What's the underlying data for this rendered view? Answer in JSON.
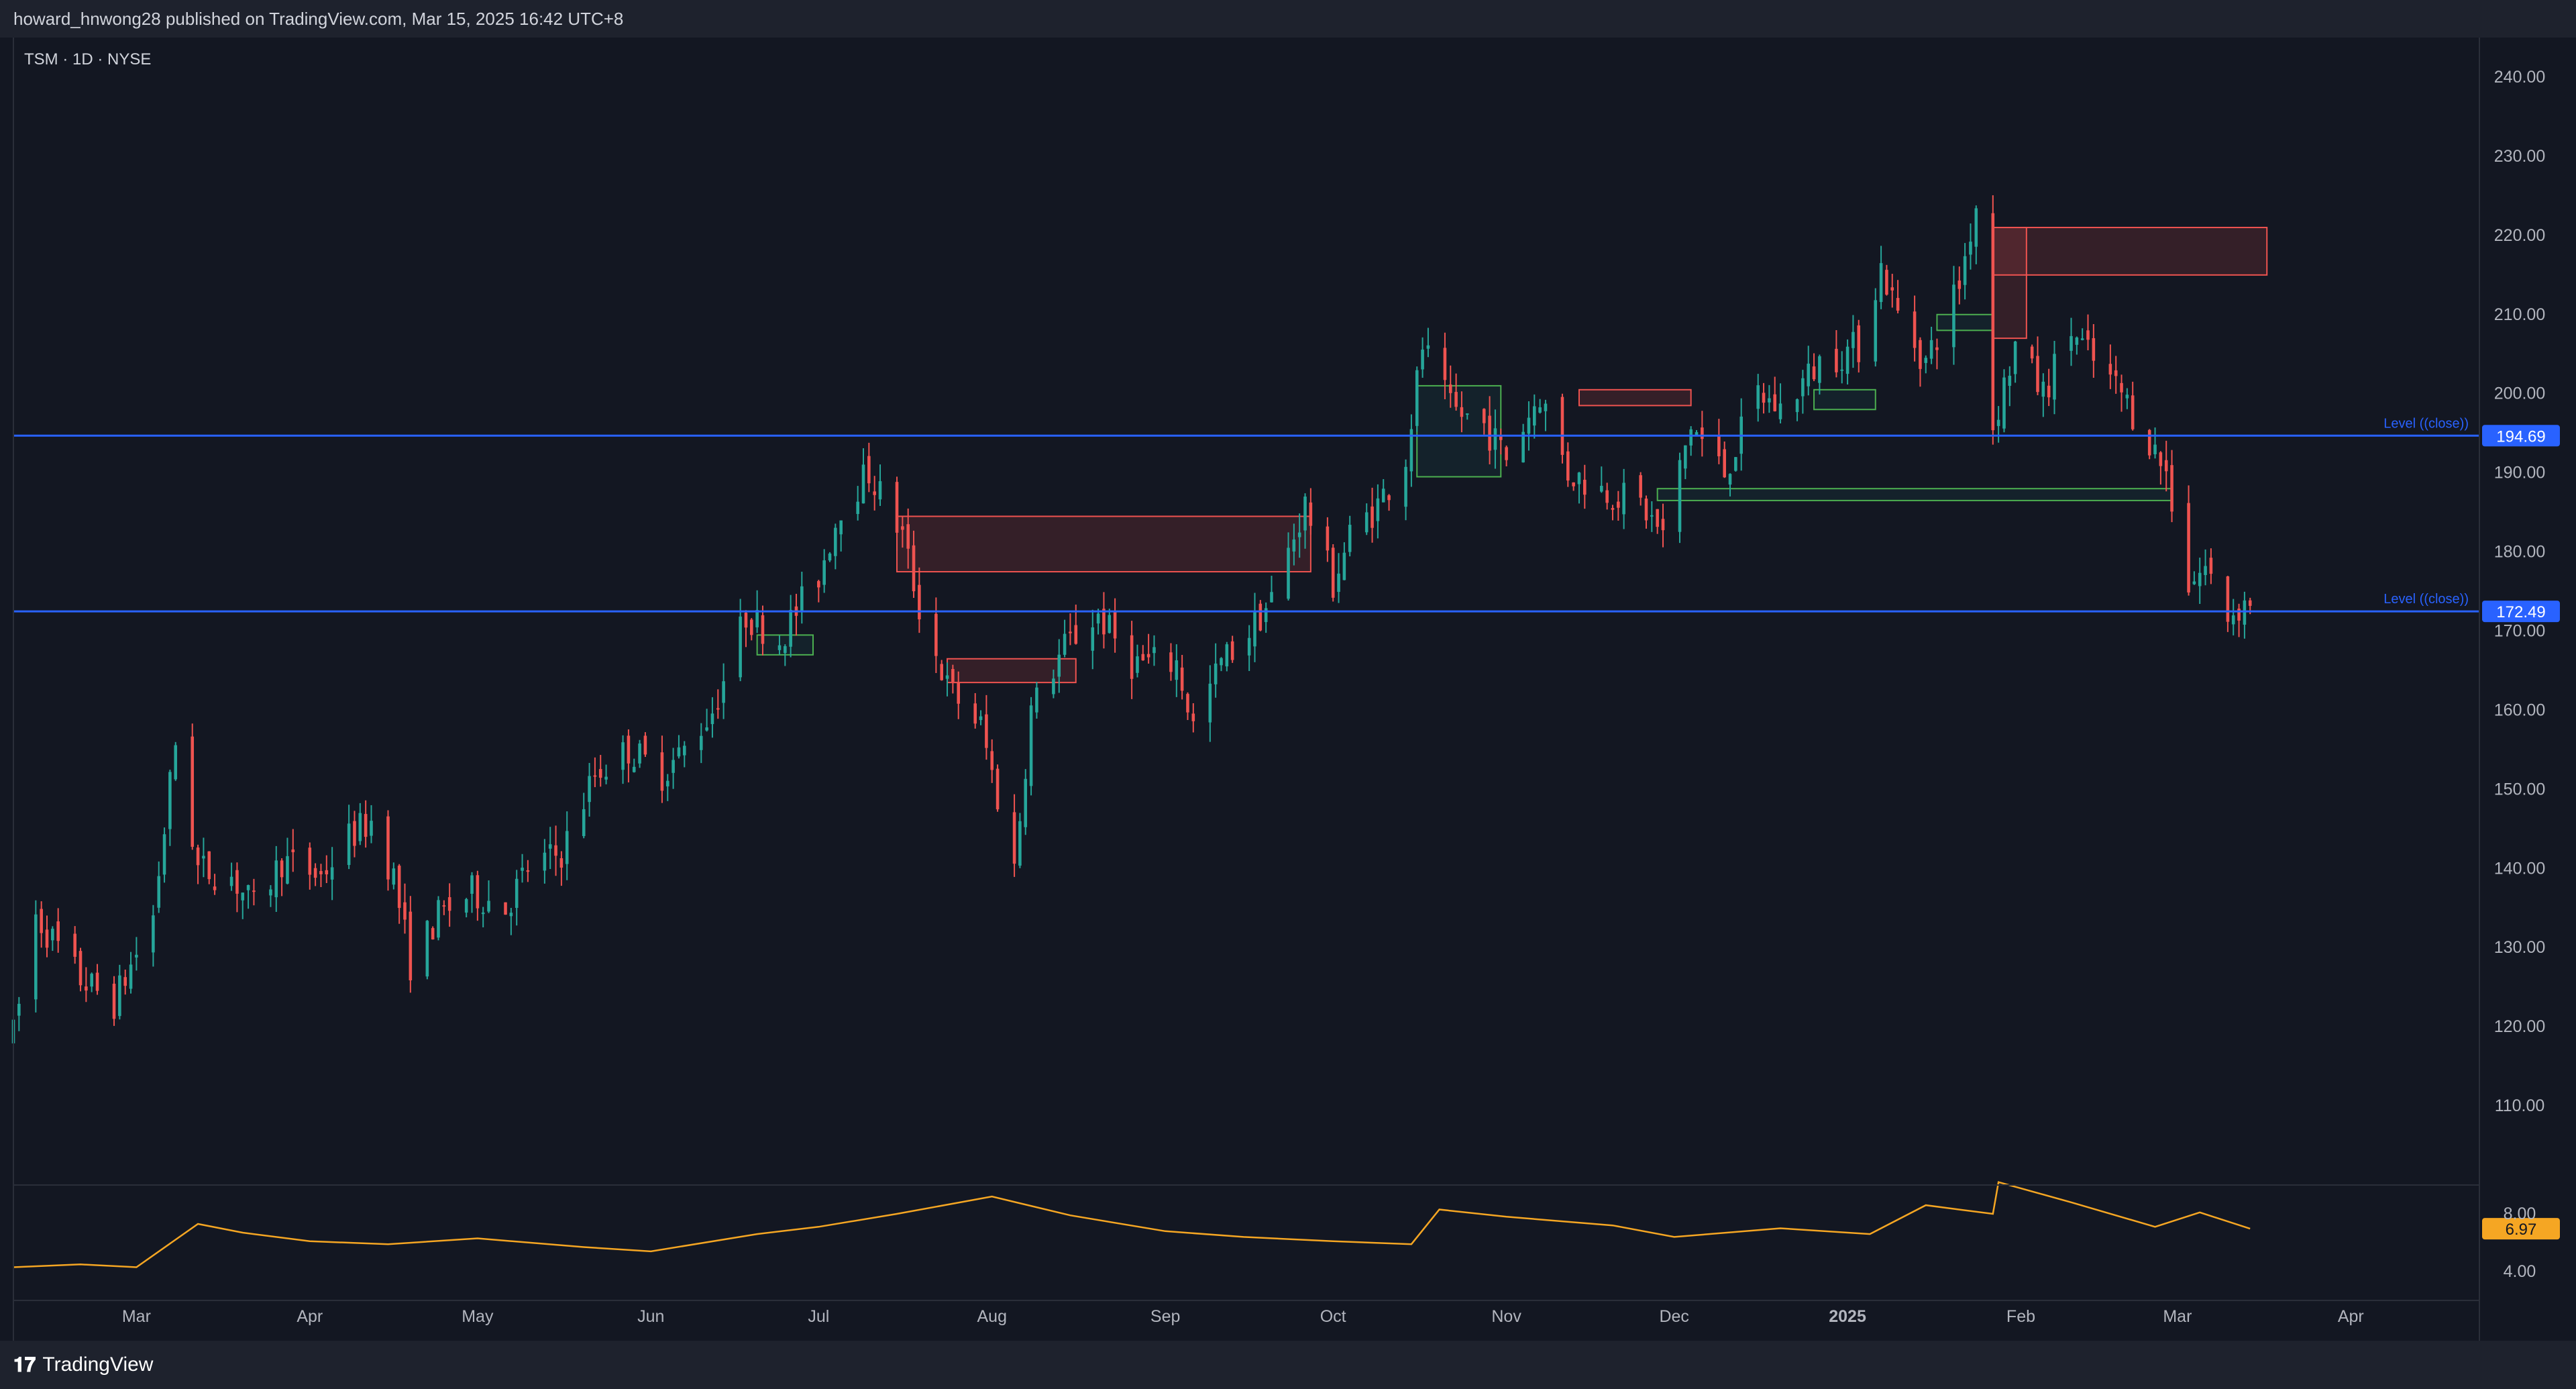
{
  "header": {
    "published_line": "howard_hnwong28 published on TradingView.com, Mar 15, 2025 16:42 UTC+8"
  },
  "footer": {
    "brand": "TradingView",
    "logo_icon": "tradingview-logo-icon"
  },
  "colors": {
    "background": "#131722",
    "panel": "#1e222d",
    "up": "#26a69a",
    "down": "#ef5350",
    "level_line": "#2962ff",
    "volatility": "#f5a623",
    "grid_text": "#b2b5be"
  },
  "chart_data": {
    "type": "candlestick",
    "symbol_label": "TSM · 1D · NYSE",
    "ylim": [
      100,
      245
    ],
    "y_ticks": [
      110,
      120,
      130,
      140,
      150,
      160,
      170,
      180,
      190,
      200,
      210,
      220,
      230,
      240
    ],
    "y_tick_labels": [
      "110.00",
      "120.00",
      "130.00",
      "140.00",
      "150.00",
      "160.00",
      "170.00",
      "180.00",
      "190.00",
      "200.00",
      "210.00",
      "220.00",
      "230.00",
      "240.00"
    ],
    "x_labels": [
      {
        "date": "2024-03-01",
        "label": "Mar"
      },
      {
        "date": "2024-04-01",
        "label": "Apr"
      },
      {
        "date": "2024-05-01",
        "label": "May"
      },
      {
        "date": "2024-06-01",
        "label": "Jun"
      },
      {
        "date": "2024-07-01",
        "label": "Jul"
      },
      {
        "date": "2024-08-01",
        "label": "Aug"
      },
      {
        "date": "2024-09-01",
        "label": "Sep"
      },
      {
        "date": "2024-10-01",
        "label": "Oct"
      },
      {
        "date": "2024-11-01",
        "label": "Nov"
      },
      {
        "date": "2024-12-01",
        "label": "Dec"
      },
      {
        "date": "2025-01-01",
        "label": "2025"
      },
      {
        "date": "2025-02-01",
        "label": "Feb"
      },
      {
        "date": "2025-03-01",
        "label": "Mar"
      },
      {
        "date": "2025-04-01",
        "label": "Apr"
      }
    ],
    "price_path": [
      [
        "2024-02-08",
        119
      ],
      [
        "2024-02-12",
        134
      ],
      [
        "2024-02-20",
        126
      ],
      [
        "2024-02-26",
        123
      ],
      [
        "2024-03-04",
        134
      ],
      [
        "2024-03-08",
        156
      ],
      [
        "2024-03-12",
        140
      ],
      [
        "2024-03-18",
        139
      ],
      [
        "2024-03-22",
        135
      ],
      [
        "2024-03-27",
        141
      ],
      [
        "2024-04-03",
        139
      ],
      [
        "2024-04-08",
        144
      ],
      [
        "2024-04-12",
        146
      ],
      [
        "2024-04-16",
        139
      ],
      [
        "2024-04-19",
        128
      ],
      [
        "2024-04-24",
        134
      ],
      [
        "2024-04-30",
        137
      ],
      [
        "2024-05-06",
        135
      ],
      [
        "2024-05-10",
        140
      ],
      [
        "2024-05-16",
        142
      ],
      [
        "2024-05-22",
        152
      ],
      [
        "2024-05-28",
        155
      ],
      [
        "2024-06-03",
        152
      ],
      [
        "2024-06-07",
        155
      ],
      [
        "2024-06-12",
        160
      ],
      [
        "2024-06-18",
        172
      ],
      [
        "2024-06-24",
        169
      ],
      [
        "2024-07-01",
        177
      ],
      [
        "2024-07-05",
        186
      ],
      [
        "2024-07-10",
        190
      ],
      [
        "2024-07-16",
        182
      ],
      [
        "2024-07-19",
        173
      ],
      [
        "2024-07-24",
        163
      ],
      [
        "2024-07-30",
        158
      ],
      [
        "2024-08-05",
        140
      ],
      [
        "2024-08-08",
        160
      ],
      [
        "2024-08-14",
        168
      ],
      [
        "2024-08-20",
        172
      ],
      [
        "2024-08-26",
        166
      ],
      [
        "2024-09-03",
        166
      ],
      [
        "2024-09-06",
        158
      ],
      [
        "2024-09-11",
        166
      ],
      [
        "2024-09-16",
        170
      ],
      [
        "2024-09-20",
        174
      ],
      [
        "2024-09-26",
        186
      ],
      [
        "2024-10-01",
        176
      ],
      [
        "2024-10-04",
        182
      ],
      [
        "2024-10-09",
        186
      ],
      [
        "2024-10-14",
        192
      ],
      [
        "2024-10-17",
        206
      ],
      [
        "2024-10-22",
        198
      ],
      [
        "2024-10-28",
        196
      ],
      [
        "2024-11-01",
        192
      ],
      [
        "2024-11-07",
        200
      ],
      [
        "2024-11-12",
        190
      ],
      [
        "2024-11-18",
        188
      ],
      [
        "2024-11-25",
        186
      ],
      [
        "2024-11-29",
        182
      ],
      [
        "2024-12-04",
        196
      ],
      [
        "2024-12-10",
        190
      ],
      [
        "2024-12-16",
        200
      ],
      [
        "2024-12-20",
        198
      ],
      [
        "2024-12-27",
        204
      ],
      [
        "2025-01-03",
        206
      ],
      [
        "2025-01-07",
        216
      ],
      [
        "2025-01-10",
        210
      ],
      [
        "2025-01-15",
        204
      ],
      [
        "2025-01-21",
        214
      ],
      [
        "2025-01-24",
        224
      ],
      [
        "2025-01-27",
        196
      ],
      [
        "2025-01-31",
        206
      ],
      [
        "2025-02-05",
        200
      ],
      [
        "2025-02-10",
        208
      ],
      [
        "2025-02-14",
        204
      ],
      [
        "2025-02-19",
        200
      ],
      [
        "2025-02-24",
        194
      ],
      [
        "2025-02-27",
        190
      ],
      [
        "2025-03-03",
        176
      ],
      [
        "2025-03-06",
        178
      ],
      [
        "2025-03-10",
        172
      ],
      [
        "2025-03-14",
        174
      ]
    ],
    "levels": [
      {
        "name": "Level ((close))",
        "value": 194.69,
        "value_label": "194.69"
      },
      {
        "name": "Level ((close))",
        "value": 172.49,
        "value_label": "172.49"
      }
    ],
    "zones": [
      {
        "type": "bearish",
        "start": "2024-07-15",
        "end": "2024-09-27",
        "top": 184.5,
        "bottom": 177.5
      },
      {
        "type": "bearish",
        "start": "2024-07-24",
        "end": "2024-08-16",
        "top": 166.5,
        "bottom": 163.5
      },
      {
        "type": "bullish",
        "start": "2024-06-20",
        "end": "2024-06-30",
        "top": 169.5,
        "bottom": 167
      },
      {
        "type": "bullish",
        "start": "2024-10-16",
        "end": "2024-10-31",
        "top": 201,
        "bottom": 189.5
      },
      {
        "type": "bearish",
        "start": "2024-11-14",
        "end": "2024-12-04",
        "top": 200.5,
        "bottom": 198.5
      },
      {
        "type": "bullish",
        "start": "2024-11-28",
        "end": "2025-02-28",
        "top": 188,
        "bottom": 186.5
      },
      {
        "type": "bullish",
        "start": "2024-12-26",
        "end": "2025-01-06",
        "top": 200.5,
        "bottom": 198
      },
      {
        "type": "bullish",
        "start": "2025-01-17",
        "end": "2025-01-27",
        "top": 210,
        "bottom": 208
      },
      {
        "type": "bearish",
        "start": "2025-01-27",
        "end": "2025-03-17",
        "top": 221,
        "bottom": 215
      },
      {
        "type": "bearish",
        "start": "2025-01-27",
        "end": "2025-02-02",
        "top": 221,
        "bottom": 207
      }
    ],
    "volatility": {
      "ylim": [
        2,
        10
      ],
      "y_ticks": [
        4,
        8
      ],
      "y_tick_labels": [
        "4.00",
        "8.00"
      ],
      "last_value": 6.97,
      "last_label": "6.97",
      "path": [
        [
          "2024-02-08",
          4.3
        ],
        [
          "2024-02-20",
          4.5
        ],
        [
          "2024-03-01",
          4.3
        ],
        [
          "2024-03-12",
          7.3
        ],
        [
          "2024-03-20",
          6.7
        ],
        [
          "2024-04-01",
          6.1
        ],
        [
          "2024-04-15",
          5.9
        ],
        [
          "2024-05-01",
          6.3
        ],
        [
          "2024-05-20",
          5.7
        ],
        [
          "2024-06-01",
          5.4
        ],
        [
          "2024-06-20",
          6.6
        ],
        [
          "2024-07-01",
          7.1
        ],
        [
          "2024-07-15",
          8.0
        ],
        [
          "2024-08-01",
          9.2
        ],
        [
          "2024-08-15",
          7.9
        ],
        [
          "2024-09-01",
          6.8
        ],
        [
          "2024-09-15",
          6.4
        ],
        [
          "2024-10-01",
          6.1
        ],
        [
          "2024-10-15",
          5.9
        ],
        [
          "2024-10-20",
          8.3
        ],
        [
          "2024-11-01",
          7.8
        ],
        [
          "2024-11-20",
          7.2
        ],
        [
          "2024-12-01",
          6.4
        ],
        [
          "2024-12-20",
          7.0
        ],
        [
          "2025-01-05",
          6.6
        ],
        [
          "2025-01-15",
          8.6
        ],
        [
          "2025-01-27",
          8.0
        ],
        [
          "2025-01-28",
          10.2
        ],
        [
          "2025-02-10",
          8.8
        ],
        [
          "2025-02-25",
          7.1
        ],
        [
          "2025-03-05",
          8.1
        ],
        [
          "2025-03-14",
          6.97
        ]
      ]
    }
  }
}
